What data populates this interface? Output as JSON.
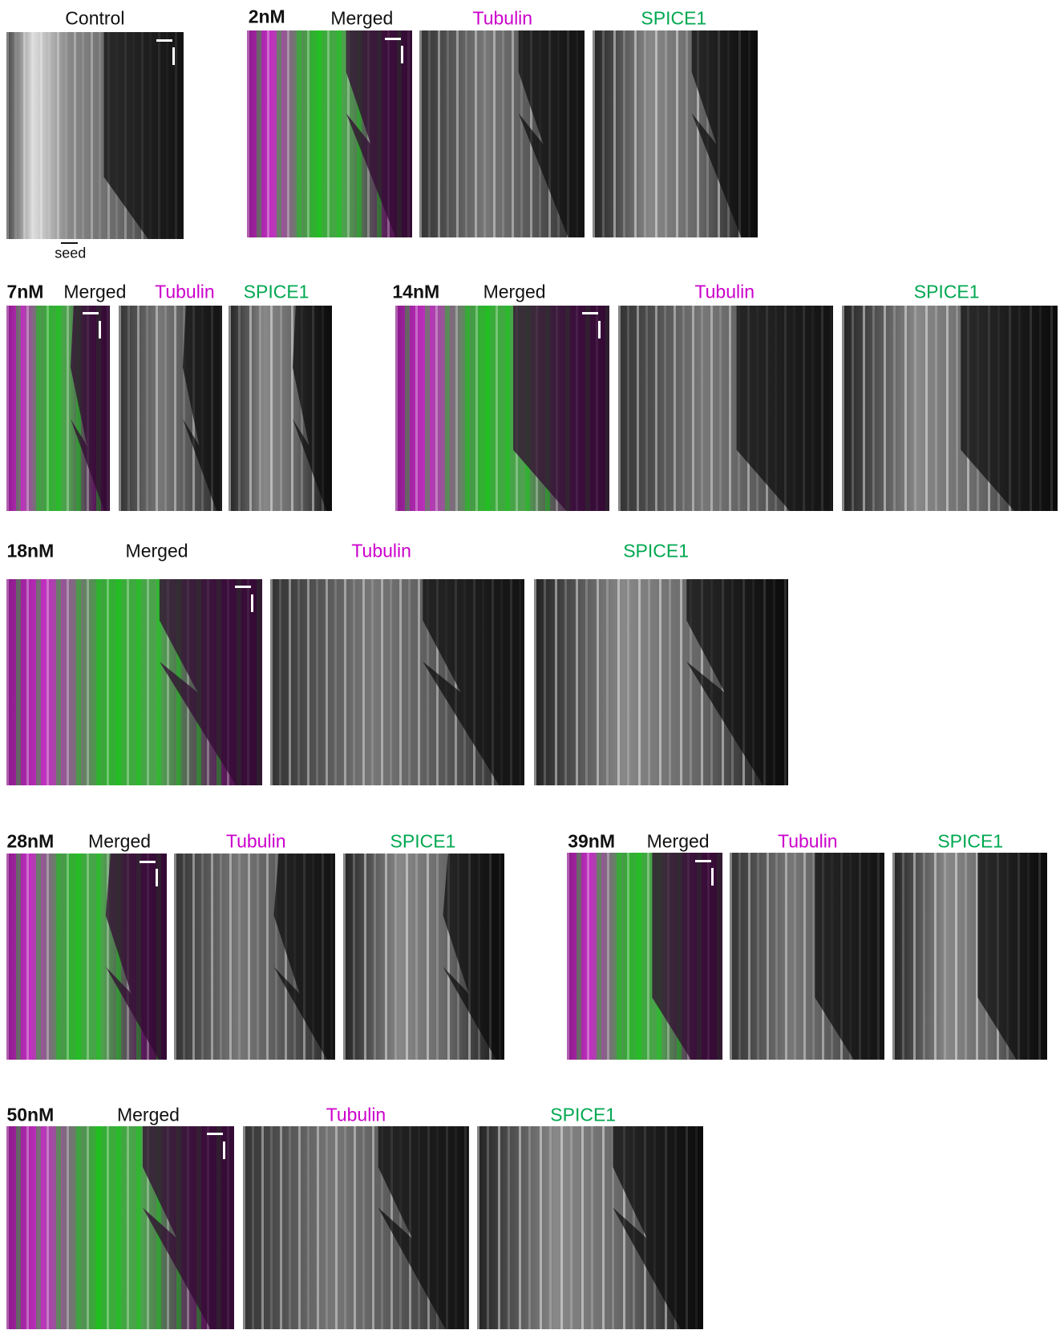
{
  "groups": [
    {
      "panels": [
        {
          "title": "Control"
        }
      ],
      "note": "seed"
    },
    {
      "label": "2nM",
      "panels": [
        {
          "title": "Merged"
        },
        {
          "title": "Tubulin"
        },
        {
          "title": "SPICE1"
        }
      ]
    },
    {
      "label": "7nM",
      "panels": [
        {
          "title": "Merged"
        },
        {
          "title": "Tubulin"
        },
        {
          "title": "SPICE1"
        }
      ]
    },
    {
      "label": "14nM",
      "panels": [
        {
          "title": "Merged"
        },
        {
          "title": "Tubulin"
        },
        {
          "title": "SPICE1"
        }
      ]
    },
    {
      "label": "18nM",
      "panels": [
        {
          "title": "Merged"
        },
        {
          "title": "Tubulin"
        },
        {
          "title": "SPICE1"
        }
      ]
    },
    {
      "label": "28nM",
      "panels": [
        {
          "title": "Merged"
        },
        {
          "title": "Tubulin"
        },
        {
          "title": "SPICE1"
        }
      ]
    },
    {
      "label": "39nM",
      "panels": [
        {
          "title": "Merged"
        },
        {
          "title": "Tubulin"
        },
        {
          "title": "SPICE1"
        }
      ]
    },
    {
      "label": "50nM",
      "panels": [
        {
          "title": "Merged"
        },
        {
          "title": "Tubulin"
        },
        {
          "title": "SPICE1"
        }
      ]
    }
  ]
}
